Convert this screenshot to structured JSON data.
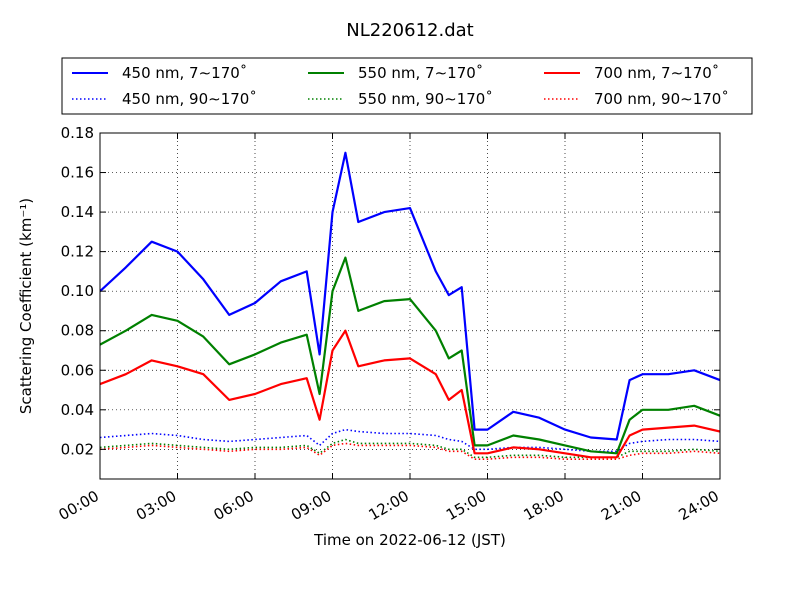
{
  "chart_data": {
    "type": "line",
    "title": "NL220612.dat",
    "xlabel": "Time on 2022-06-12 (JST)",
    "ylabel": "Scattering Coefficient (km⁻¹)",
    "xlim": [
      "00:00",
      "24:00"
    ],
    "ylim": [
      0.005,
      0.18
    ],
    "x_ticks": [
      "00:00",
      "03:00",
      "06:00",
      "09:00",
      "12:00",
      "15:00",
      "18:00",
      "21:00",
      "24:00"
    ],
    "y_ticks": [
      "0.02",
      "0.04",
      "0.06",
      "0.08",
      "0.10",
      "0.12",
      "0.14",
      "0.16",
      "0.18"
    ],
    "grid": true,
    "legend_position": "top",
    "x_hours": [
      0,
      1,
      2,
      3,
      4,
      5,
      6,
      7,
      8,
      8.5,
      9,
      9.5,
      10,
      11,
      12,
      13,
      13.5,
      14,
      14.5,
      15,
      16,
      17,
      18,
      19,
      20,
      20.5,
      21,
      22,
      23,
      24
    ],
    "series": [
      {
        "name": "450 nm, 7∼170˚",
        "color": "#0000ff",
        "style": "solid",
        "values": [
          0.1,
          0.112,
          0.125,
          0.12,
          0.106,
          0.088,
          0.094,
          0.105,
          0.11,
          0.068,
          0.14,
          0.17,
          0.135,
          0.14,
          0.142,
          0.11,
          0.098,
          0.102,
          0.03,
          0.03,
          0.039,
          0.036,
          0.03,
          0.026,
          0.025,
          0.055,
          0.058,
          0.058,
          0.06,
          0.055
        ]
      },
      {
        "name": "450 nm, 90∼170˚",
        "color": "#0000ff",
        "style": "dotted",
        "values": [
          0.026,
          0.027,
          0.028,
          0.027,
          0.025,
          0.024,
          0.025,
          0.026,
          0.027,
          0.022,
          0.028,
          0.03,
          0.029,
          0.028,
          0.028,
          0.027,
          0.025,
          0.024,
          0.02,
          0.02,
          0.021,
          0.021,
          0.02,
          0.019,
          0.019,
          0.023,
          0.024,
          0.025,
          0.025,
          0.024
        ]
      },
      {
        "name": "550 nm, 7∼170˚",
        "color": "#008000",
        "style": "solid",
        "values": [
          0.073,
          0.08,
          0.088,
          0.085,
          0.077,
          0.063,
          0.068,
          0.074,
          0.078,
          0.048,
          0.1,
          0.117,
          0.09,
          0.095,
          0.096,
          0.08,
          0.066,
          0.07,
          0.022,
          0.022,
          0.027,
          0.025,
          0.022,
          0.019,
          0.018,
          0.035,
          0.04,
          0.04,
          0.042,
          0.037
        ]
      },
      {
        "name": "550 nm, 90∼170˚",
        "color": "#008000",
        "style": "dotted",
        "values": [
          0.021,
          0.022,
          0.023,
          0.022,
          0.021,
          0.02,
          0.021,
          0.021,
          0.022,
          0.018,
          0.023,
          0.025,
          0.023,
          0.023,
          0.023,
          0.022,
          0.02,
          0.02,
          0.016,
          0.016,
          0.017,
          0.017,
          0.016,
          0.016,
          0.016,
          0.019,
          0.019,
          0.019,
          0.02,
          0.019
        ]
      },
      {
        "name": "700 nm, 7∼170˚",
        "color": "#ff0000",
        "style": "solid",
        "values": [
          0.053,
          0.058,
          0.065,
          0.062,
          0.058,
          0.045,
          0.048,
          0.053,
          0.056,
          0.035,
          0.07,
          0.08,
          0.062,
          0.065,
          0.066,
          0.058,
          0.045,
          0.05,
          0.018,
          0.018,
          0.021,
          0.02,
          0.018,
          0.016,
          0.016,
          0.027,
          0.03,
          0.031,
          0.032,
          0.029
        ]
      },
      {
        "name": "700 nm, 90∼170˚",
        "color": "#ff0000",
        "style": "dotted",
        "values": [
          0.02,
          0.021,
          0.022,
          0.021,
          0.02,
          0.019,
          0.02,
          0.02,
          0.021,
          0.017,
          0.022,
          0.023,
          0.022,
          0.022,
          0.022,
          0.021,
          0.019,
          0.019,
          0.015,
          0.015,
          0.016,
          0.016,
          0.015,
          0.015,
          0.015,
          0.017,
          0.018,
          0.018,
          0.019,
          0.018
        ]
      }
    ]
  }
}
